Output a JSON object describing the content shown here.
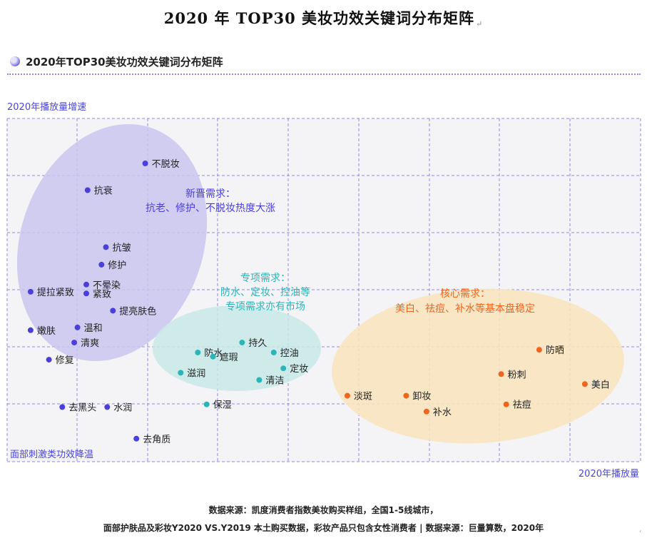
{
  "page": {
    "doc_title": "2020 年 TOP30 美妆功效关键词分布矩阵",
    "paragraph_mark": "↵",
    "chart_title": "2020年TOP30美妆功效关键词分布矩阵",
    "footer_line1": "数据来源：凯度消费者指数美妆购买样组，全国1-5线城市，",
    "footer_line2": "面部护肤品及彩妆Y2020 VS.Y2019 本土购买数据，彩妆产品只包含女性消费者 |   数据来源：巨量算数，2020年",
    "corner_mark": "‹"
  },
  "chart_data": {
    "type": "scatter",
    "xlabel": "2020年播放量",
    "ylabel_top": "2020年播放量增速",
    "ylabel_bottom": "面部刺激类功效降温",
    "xlim": [
      0,
      100
    ],
    "ylim": [
      0,
      100
    ],
    "grid": true,
    "colors": {
      "grid": "#8f88e6",
      "label": "#4b45d8",
      "emerging": "#4a3fdc",
      "special": "#2bb5b8",
      "core": "#f0641e",
      "emerging_fill": "#c9c6ef",
      "special_fill": "#c7e9e7",
      "core_fill": "#f8e4bf"
    },
    "clusters": [
      {
        "id": "emerging",
        "title": "新晋需求：",
        "subtitle": "抗老、修护、不脱妆热度大涨",
        "lines": []
      },
      {
        "id": "special",
        "title": "专项需求：",
        "subtitle": "",
        "lines": [
          "防水、定妆、控油等",
          "专项需求亦有市场"
        ]
      },
      {
        "id": "core",
        "title": "核心需求：",
        "subtitle": "美白、祛痘、补水等基本盘稳定",
        "lines": []
      }
    ],
    "series": [
      {
        "name": "新晋需求",
        "color_key": "emerging",
        "points": [
          {
            "label": "不脱妆",
            "x": 21.8,
            "y": 86.9
          },
          {
            "label": "抗衰",
            "x": 12.7,
            "y": 79.1
          },
          {
            "label": "抗皱",
            "x": 15.6,
            "y": 62.5
          },
          {
            "label": "修护",
            "x": 14.9,
            "y": 57.4
          },
          {
            "label": "不晕染",
            "x": 12.5,
            "y": 51.6
          },
          {
            "label": "提拉紧致",
            "x": 3.7,
            "y": 49.5
          },
          {
            "label": "紧致",
            "x": 12.5,
            "y": 49.0
          },
          {
            "label": "提亮肤色",
            "x": 16.7,
            "y": 44.0
          },
          {
            "label": "温和",
            "x": 11.1,
            "y": 39.1
          },
          {
            "label": "嫩肤",
            "x": 3.7,
            "y": 38.3
          },
          {
            "label": "清爽",
            "x": 10.6,
            "y": 34.7
          },
          {
            "label": "修复",
            "x": 6.6,
            "y": 29.7
          },
          {
            "label": "去黑头",
            "x": 8.7,
            "y": 15.9
          },
          {
            "label": "水润",
            "x": 15.8,
            "y": 15.9
          },
          {
            "label": "去角质",
            "x": 20.4,
            "y": 6.7
          }
        ]
      },
      {
        "name": "专项需求",
        "color_key": "special",
        "points": [
          {
            "label": "防水",
            "x": 30.1,
            "y": 31.8
          },
          {
            "label": "持久",
            "x": 37.1,
            "y": 34.7
          },
          {
            "label": "遮瑕",
            "x": 32.5,
            "y": 30.6
          },
          {
            "label": "控油",
            "x": 42.1,
            "y": 31.8
          },
          {
            "label": "定妆",
            "x": 43.6,
            "y": 27.2
          },
          {
            "label": "滋润",
            "x": 27.4,
            "y": 25.9
          },
          {
            "label": "清洁",
            "x": 39.8,
            "y": 23.8
          },
          {
            "label": "保湿",
            "x": 31.5,
            "y": 16.7
          }
        ]
      },
      {
        "name": "核心需求",
        "color_key": "core",
        "points": [
          {
            "label": "防晒",
            "x": 84.0,
            "y": 32.6
          },
          {
            "label": "粉刺",
            "x": 78.0,
            "y": 25.5
          },
          {
            "label": "美白",
            "x": 91.2,
            "y": 22.6
          },
          {
            "label": "淡斑",
            "x": 53.7,
            "y": 19.2
          },
          {
            "label": "卸妆",
            "x": 63.0,
            "y": 19.2
          },
          {
            "label": "祛痘",
            "x": 78.8,
            "y": 16.7
          },
          {
            "label": "补水",
            "x": 66.2,
            "y": 14.6
          }
        ]
      }
    ]
  }
}
